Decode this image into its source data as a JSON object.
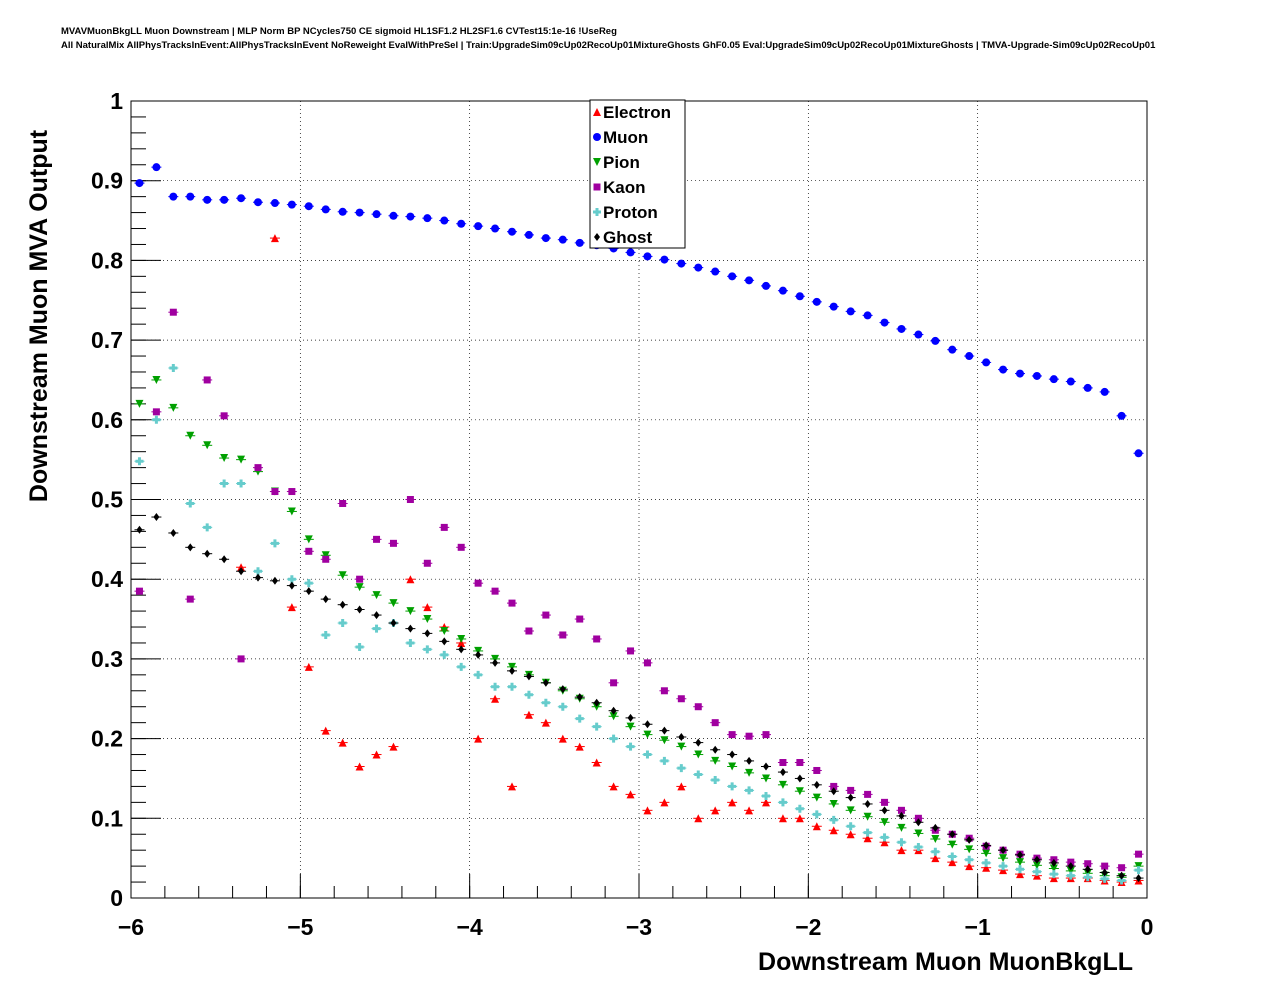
{
  "chart_data": {
    "type": "scatter",
    "title_lines": [
      "MVAVMuonBkgLL Muon Downstream | MLP Norm BP NCycles750 CE sigmoid HL1SF1.2 HL2SF1.6 CVTest15:1e-16 !UseReg",
      "All NaturalMix AllPhysTracksInEvent:AllPhysTracksInEvent NoReweight EvalWithPreSel | Train:UpgradeSim09cUp02RecoUp01MixtureGhosts GhF0.05 Eval:UpgradeSim09cUp02RecoUp01MixtureGhosts | TMVA-Upgrade-Sim09cUp02RecoUp01"
    ],
    "xlabel": "Downstream Muon MuonBkgLL",
    "ylabel": "Downstream Muon MVA Output",
    "xlim": [
      -6,
      0
    ],
    "ylim": [
      0,
      1
    ],
    "xticks": [
      -6,
      -5,
      -4,
      -3,
      -2,
      -1,
      0
    ],
    "xtick_labels": [
      "−6",
      "−5",
      "−4",
      "−3",
      "−2",
      "−1",
      "0"
    ],
    "yticks": [
      0,
      0.1,
      0.2,
      0.3,
      0.4,
      0.5,
      0.6,
      0.7,
      0.8,
      0.9,
      1
    ],
    "ytick_labels": [
      "0",
      "0.1",
      "0.2",
      "0.3",
      "0.4",
      "0.5",
      "0.6",
      "0.7",
      "0.8",
      "0.9",
      "1"
    ],
    "grid": true,
    "legend_position": "top-center",
    "x_start": -5.95,
    "x_step": 0.1,
    "series": [
      {
        "name": "Electron",
        "color": "#ff0000",
        "marker": "triangle-up",
        "values": [
          null,
          null,
          null,
          null,
          null,
          null,
          0.415,
          null,
          0.828,
          0.365,
          0.29,
          0.21,
          0.195,
          0.165,
          0.18,
          0.19,
          0.4,
          0.365,
          0.34,
          0.32,
          0.2,
          0.25,
          0.14,
          0.23,
          0.22,
          0.2,
          0.19,
          0.17,
          0.14,
          0.13,
          0.11,
          0.12,
          0.14,
          0.1,
          0.11,
          0.12,
          0.11,
          0.12,
          0.1,
          0.1,
          0.09,
          0.085,
          0.08,
          0.075,
          0.07,
          0.06,
          0.06,
          0.05,
          0.045,
          0.04,
          0.038,
          0.035,
          0.03,
          0.028,
          0.025,
          0.025,
          0.025,
          0.022,
          0.02,
          0.022
        ]
      },
      {
        "name": "Muon",
        "color": "#0000ff",
        "marker": "circle",
        "values": [
          0.897,
          0.917,
          0.88,
          0.88,
          0.876,
          0.876,
          0.878,
          0.873,
          0.872,
          0.87,
          0.868,
          0.864,
          0.861,
          0.86,
          0.858,
          0.856,
          0.855,
          0.853,
          0.85,
          0.846,
          0.843,
          0.84,
          0.836,
          0.832,
          0.828,
          0.826,
          0.822,
          0.819,
          0.815,
          0.81,
          0.805,
          0.801,
          0.796,
          0.791,
          0.786,
          0.78,
          0.775,
          0.768,
          0.762,
          0.755,
          0.748,
          0.742,
          0.736,
          0.731,
          0.722,
          0.714,
          0.707,
          0.699,
          0.688,
          0.68,
          0.672,
          0.663,
          0.658,
          0.655,
          0.651,
          0.648,
          0.64,
          0.635,
          0.605,
          0.558
        ]
      },
      {
        "name": "Pion",
        "color": "#00a000",
        "marker": "triangle-down",
        "values": [
          0.62,
          0.65,
          0.615,
          0.58,
          0.568,
          0.552,
          0.55,
          0.535,
          0.51,
          0.485,
          0.45,
          0.43,
          0.405,
          0.39,
          0.38,
          0.37,
          0.36,
          0.35,
          0.335,
          0.325,
          0.31,
          0.3,
          0.29,
          0.28,
          0.27,
          0.26,
          0.25,
          0.24,
          0.228,
          0.215,
          0.205,
          0.198,
          0.19,
          0.18,
          0.172,
          0.165,
          0.157,
          0.15,
          0.142,
          0.134,
          0.126,
          0.118,
          0.11,
          0.102,
          0.095,
          0.088,
          0.081,
          0.074,
          0.067,
          0.061,
          0.056,
          0.05,
          0.045,
          0.041,
          0.037,
          0.034,
          0.031,
          0.028,
          0.026,
          0.04
        ]
      },
      {
        "name": "Kaon",
        "color": "#a000a0",
        "marker": "square",
        "values": [
          0.385,
          0.61,
          0.735,
          0.375,
          0.65,
          0.605,
          0.3,
          0.54,
          0.51,
          0.51,
          0.435,
          0.425,
          0.495,
          0.4,
          0.45,
          0.445,
          0.5,
          0.42,
          0.465,
          0.44,
          0.395,
          0.385,
          0.37,
          0.335,
          0.355,
          0.33,
          0.35,
          0.325,
          0.27,
          0.31,
          0.295,
          0.26,
          0.25,
          0.24,
          0.22,
          0.205,
          0.203,
          0.205,
          0.17,
          0.17,
          0.16,
          0.14,
          0.135,
          0.13,
          0.12,
          0.11,
          0.1,
          0.085,
          0.08,
          0.075,
          0.065,
          0.06,
          0.055,
          0.05,
          0.048,
          0.045,
          0.043,
          0.04,
          0.038,
          0.055
        ]
      },
      {
        "name": "Proton",
        "color": "#66cccc",
        "marker": "cross",
        "values": [
          0.548,
          0.6,
          0.665,
          0.495,
          0.465,
          0.52,
          0.52,
          0.41,
          0.445,
          0.4,
          0.395,
          0.33,
          0.345,
          0.315,
          0.338,
          0.345,
          0.32,
          0.312,
          0.305,
          0.29,
          0.28,
          0.265,
          0.265,
          0.255,
          0.245,
          0.24,
          0.225,
          0.215,
          0.2,
          0.19,
          0.18,
          0.172,
          0.163,
          0.155,
          0.148,
          0.14,
          0.135,
          0.128,
          0.12,
          0.112,
          0.105,
          0.098,
          0.09,
          0.082,
          0.076,
          0.07,
          0.064,
          0.058,
          0.052,
          0.048,
          0.044,
          0.04,
          0.036,
          0.033,
          0.03,
          0.028,
          0.026,
          0.024,
          0.022,
          0.035
        ]
      },
      {
        "name": "Ghost",
        "color": "#000000",
        "marker": "diamond",
        "values": [
          0.462,
          0.478,
          0.458,
          0.44,
          0.432,
          0.425,
          0.41,
          0.402,
          0.398,
          0.392,
          0.385,
          0.375,
          0.368,
          0.362,
          0.355,
          0.345,
          0.338,
          0.332,
          0.322,
          0.312,
          0.305,
          0.295,
          0.285,
          0.278,
          0.27,
          0.262,
          0.252,
          0.245,
          0.235,
          0.226,
          0.218,
          0.21,
          0.202,
          0.195,
          0.186,
          0.18,
          0.172,
          0.165,
          0.158,
          0.15,
          0.142,
          0.134,
          0.126,
          0.118,
          0.11,
          0.103,
          0.095,
          0.088,
          0.08,
          0.073,
          0.066,
          0.06,
          0.054,
          0.048,
          0.044,
          0.04,
          0.036,
          0.032,
          0.028,
          0.025
        ]
      }
    ]
  }
}
